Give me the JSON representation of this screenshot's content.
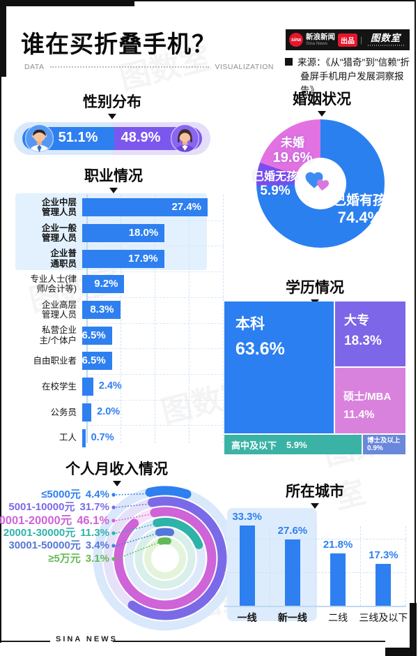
{
  "page": {
    "title": "谁在买折叠手机？",
    "footer": "SINA NEWS",
    "data_label": "DATA",
    "viz_label": "VISUALIZATION",
    "watermark": "图数室",
    "brand": {
      "sina_icon": "sina",
      "name_cn": "新浪新闻",
      "name_en": "Sina News",
      "badge": "出品",
      "divider": "|",
      "studio": "图数室"
    },
    "source_line1": "来源：《从\"猎奇\"到\"信赖\"折",
    "source_line2": "叠屏手机用户发展洞察报告》"
  },
  "sections": {
    "gender_title": "性别分布",
    "marital_title": "婚姻状况",
    "occupation_title": "职业情况",
    "education_title": "学历情况",
    "income_title": "个人月收入情况",
    "city_title": "所在城市"
  },
  "chart_data": [
    {
      "id": "gender",
      "type": "bar",
      "title": "性别分布",
      "series": [
        {
          "name": "男",
          "value": 51.1,
          "label": "51.1%",
          "color": "#2e7ff0"
        },
        {
          "name": "女",
          "value": 48.9,
          "label": "48.9%",
          "color": "#7c57ee"
        }
      ]
    },
    {
      "id": "marital",
      "type": "pie",
      "title": "婚姻状况",
      "slices": [
        {
          "label": "已婚有孩",
          "pct": "74.4%",
          "value": 74.4,
          "color": "#2b80f0"
        },
        {
          "label": "已婚无孩",
          "pct": "5.9%",
          "value": 5.9,
          "color": "#7a4ff0"
        },
        {
          "label": "未婚",
          "pct": "19.6%",
          "value": 19.6,
          "color": "#e272e2"
        }
      ]
    },
    {
      "id": "occupation",
      "type": "bar",
      "orientation": "horizontal",
      "title": "职业情况",
      "categories": [
        "企业中层\n管理人员",
        "企业一般\n管理人员",
        "企业普\n通职员",
        "专业人士(律\n师/会计等)",
        "企业高层\n管理人员",
        "私营企业\n主/个体户",
        "自由职业者",
        "在校学生",
        "公务员",
        "工人"
      ],
      "values": [
        27.4,
        18.0,
        17.9,
        9.2,
        8.3,
        6.5,
        6.5,
        2.4,
        2.0,
        0.7
      ],
      "labels": [
        "27.4%",
        "18.0%",
        "17.9%",
        "9.2%",
        "8.3%",
        "6.5%",
        "6.5%",
        "2.4%",
        "2.0%",
        "0.7%"
      ],
      "highlight_rows": 3,
      "bar_color": "#2e7ff0",
      "xlim": [
        0,
        30
      ]
    },
    {
      "id": "education",
      "type": "treemap",
      "title": "学历情况",
      "items": [
        {
          "label": "本科",
          "pct": "63.6%",
          "value": 63.6,
          "color": "#2b7ff0"
        },
        {
          "label": "大专",
          "pct": "18.3%",
          "value": 18.3,
          "color": "#7e66e8"
        },
        {
          "label": "硕士/MBA",
          "pct": "11.4%",
          "value": 11.4,
          "color": "#d982dd"
        },
        {
          "label": "高中及以下",
          "pct": "5.9%",
          "value": 5.9,
          "color": "#3ab3a6"
        },
        {
          "label": "博士及以上",
          "pct": "0.9%",
          "value": 0.9,
          "color": "#6987db"
        }
      ]
    },
    {
      "id": "income",
      "type": "radial",
      "title": "个人月收入情况",
      "scale_note": "arc length scaled so 50% = full circle",
      "items": [
        {
          "label": "≤5000元",
          "pct": "4.4%",
          "value": 4.4,
          "color": "#2e7ff0",
          "bg": "#d9e8fb"
        },
        {
          "label": "5001-10000元",
          "pct": "31.7%",
          "value": 31.7,
          "color": "#7b6ae8",
          "bg": "#e4e1f9"
        },
        {
          "label": "10001-20000元",
          "pct": "46.1%",
          "value": 46.1,
          "color": "#cf63d8",
          "bg": "#f7e0f7",
          "emphasis": true
        },
        {
          "label": "20001-30000元",
          "pct": "11.3%",
          "value": 11.3,
          "color": "#2eb3a9",
          "bg": "#dde9fa"
        },
        {
          "label": "30001-50000元",
          "pct": "3.4%",
          "value": 3.4,
          "color": "#5577d9",
          "bg": "#d9efe9"
        },
        {
          "label": "≥5万元",
          "pct": "3.1%",
          "value": 3.1,
          "color": "#62b956",
          "bg": "#e3f4da"
        }
      ]
    },
    {
      "id": "city",
      "type": "bar",
      "title": "所在城市",
      "categories": [
        "一线",
        "新一线",
        "二线",
        "三线及以下"
      ],
      "values": [
        33.3,
        27.6,
        21.8,
        17.3
      ],
      "labels": [
        "33.3%",
        "27.6%",
        "21.8%",
        "17.3%"
      ],
      "highlight_cols": 2,
      "bar_color": "#2e7ff0"
    }
  ]
}
